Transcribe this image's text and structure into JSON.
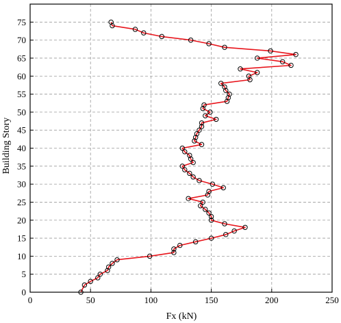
{
  "chart_data": {
    "type": "line",
    "xlabel": "Fx (kN)",
    "ylabel": "Building Story",
    "xlim": [
      0,
      250
    ],
    "ylim": [
      0,
      80
    ],
    "xticks": [
      0,
      50,
      100,
      150,
      200,
      250
    ],
    "yticks": [
      0,
      5,
      10,
      15,
      20,
      25,
      30,
      35,
      40,
      45,
      50,
      55,
      60,
      65,
      70,
      75
    ],
    "grid": true,
    "grid_style": "dashed",
    "line_color": "#e8141b",
    "marker": "open-circle",
    "series": [
      {
        "points": [
          [
            42,
            0
          ],
          [
            45,
            2
          ],
          [
            50,
            3
          ],
          [
            56,
            4
          ],
          [
            58,
            5
          ],
          [
            64,
            6
          ],
          [
            65,
            7
          ],
          [
            68,
            8
          ],
          [
            72,
            9
          ],
          [
            99,
            10
          ],
          [
            119,
            11
          ],
          [
            119,
            12
          ],
          [
            124,
            13
          ],
          [
            137,
            14
          ],
          [
            150,
            15
          ],
          [
            162,
            16
          ],
          [
            169,
            17
          ],
          [
            178,
            18
          ],
          [
            161,
            19
          ],
          [
            150,
            20
          ],
          [
            150,
            21
          ],
          [
            148,
            22
          ],
          [
            145,
            23
          ],
          [
            141,
            24
          ],
          [
            143,
            25
          ],
          [
            131,
            26
          ],
          [
            147,
            27
          ],
          [
            148,
            28
          ],
          [
            160,
            29
          ],
          [
            151,
            30
          ],
          [
            140,
            31
          ],
          [
            135,
            32
          ],
          [
            132,
            33
          ],
          [
            128,
            34
          ],
          [
            126,
            35
          ],
          [
            135,
            36
          ],
          [
            133,
            37
          ],
          [
            132,
            38
          ],
          [
            128,
            39
          ],
          [
            126,
            40
          ],
          [
            142,
            41
          ],
          [
            136,
            42
          ],
          [
            137,
            43
          ],
          [
            138,
            44
          ],
          [
            140,
            45
          ],
          [
            142,
            46
          ],
          [
            142,
            47
          ],
          [
            154,
            48
          ],
          [
            145,
            49
          ],
          [
            149,
            50
          ],
          [
            143,
            51
          ],
          [
            144,
            52
          ],
          [
            163,
            53
          ],
          [
            164,
            54
          ],
          [
            165,
            55
          ],
          [
            162,
            56
          ],
          [
            161,
            57
          ],
          [
            158,
            58
          ],
          [
            182,
            59
          ],
          [
            181,
            60
          ],
          [
            188,
            61
          ],
          [
            174,
            62
          ],
          [
            216,
            63
          ],
          [
            209,
            64
          ],
          [
            188,
            65
          ],
          [
            220,
            66
          ],
          [
            199,
            67
          ],
          [
            161,
            68
          ],
          [
            148,
            69
          ],
          [
            133,
            70
          ],
          [
            109,
            71
          ],
          [
            94,
            72
          ],
          [
            87,
            73
          ],
          [
            68,
            74
          ],
          [
            67,
            75
          ]
        ]
      }
    ]
  }
}
